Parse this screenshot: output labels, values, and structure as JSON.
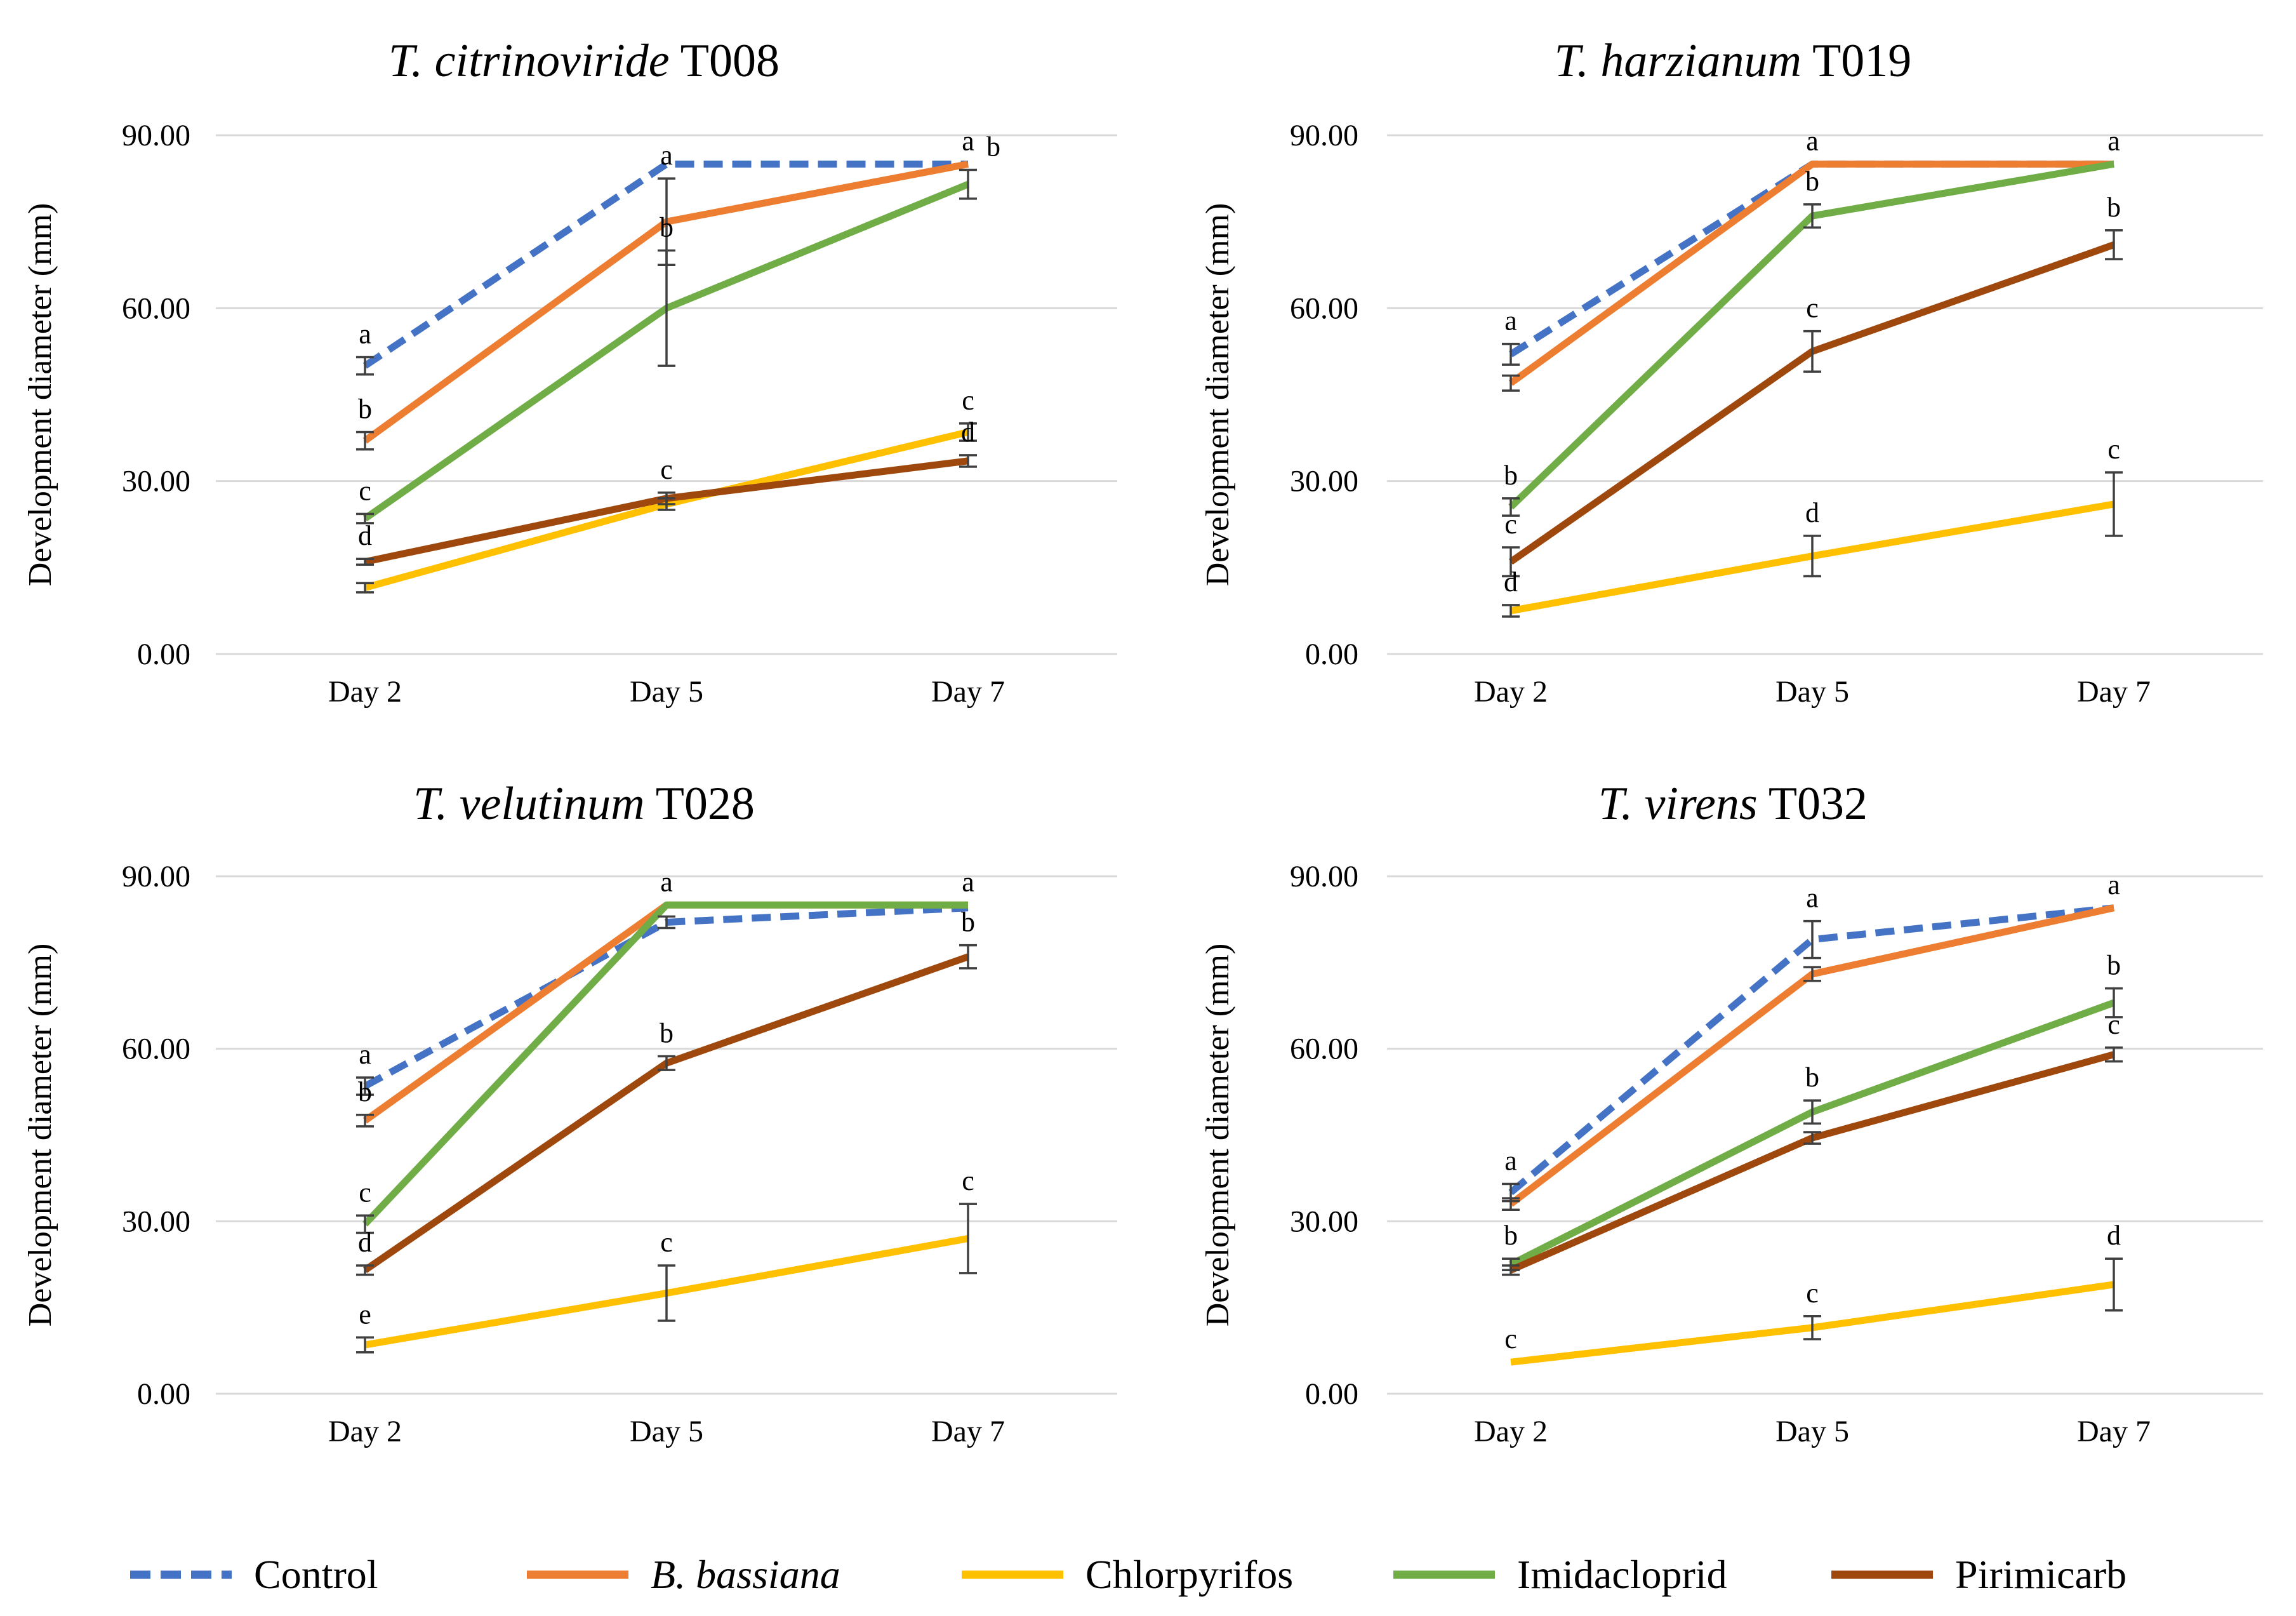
{
  "series_styles": [
    {
      "name": "Control",
      "color": "#4472C4",
      "dashed": true
    },
    {
      "name": "B. bassiana",
      "color": "#ED7D31",
      "dashed": false,
      "italic": true
    },
    {
      "name": "Chlorpyrifos",
      "color": "#FFC000",
      "dashed": false
    },
    {
      "name": "Imidacloprid",
      "color": "#70AD47",
      "dashed": false
    },
    {
      "name": "Pirimicarb",
      "color": "#9E480E",
      "dashed": false
    }
  ],
  "legend": {
    "items": [
      {
        "label": "Control"
      },
      {
        "label": "B. bassiana"
      },
      {
        "label": "Chlorpyrifos"
      },
      {
        "label": "Imidacloprid"
      },
      {
        "label": "Pirimicarb"
      }
    ]
  },
  "chart_data": [
    {
      "type": "line",
      "title_species": "T. citrinoviride",
      "title_strain": "T008",
      "categories": [
        "Day 2",
        "Day 5",
        "Day 7"
      ],
      "ylabel": "Development diameter (mm)",
      "yticks": [
        "0.00",
        "30.00",
        "60.00",
        "90.00"
      ],
      "ylim": [
        0,
        90
      ],
      "series": [
        {
          "name": "Control",
          "values": [
            50,
            85,
            85
          ],
          "errors": [
            1.5,
            0,
            0
          ],
          "letters": [
            "a",
            "",
            "a"
          ]
        },
        {
          "name": "B. bassiana",
          "values": [
            37,
            75,
            85
          ],
          "errors": [
            1.5,
            7.5,
            0
          ],
          "letters": [
            "b",
            "a",
            ""
          ]
        },
        {
          "name": "Chlorpyrifos",
          "values": [
            11.5,
            26,
            38.5
          ],
          "errors": [
            0.8,
            1,
            1.5
          ],
          "letters": [
            "",
            "",
            "c"
          ]
        },
        {
          "name": "Imidacloprid",
          "values": [
            23.5,
            60,
            81.5
          ],
          "errors": [
            0.8,
            10,
            2.5
          ],
          "letters": [
            "c",
            "b",
            "b"
          ]
        },
        {
          "name": "Pirimicarb",
          "values": [
            16,
            27,
            33.5
          ],
          "errors": [
            0.5,
            1,
            1
          ],
          "letters": [
            "d",
            "c",
            "d"
          ]
        }
      ]
    },
    {
      "type": "line",
      "title_species": "T. harzianum",
      "title_strain": "T019",
      "categories": [
        "Day 2",
        "Day 5",
        "Day 7"
      ],
      "ylabel": "Development diameter (mm)",
      "yticks": [
        "0.00",
        "30.00",
        "60.00",
        "90.00"
      ],
      "ylim": [
        0,
        90
      ],
      "series": [
        {
          "name": "Control",
          "values": [
            52,
            85,
            85
          ],
          "errors": [
            1.8,
            0,
            0
          ],
          "letters": [
            "a",
            "a",
            "a"
          ]
        },
        {
          "name": "B. bassiana",
          "values": [
            47,
            85,
            85
          ],
          "errors": [
            1.3,
            0,
            0
          ],
          "letters": [
            "",
            "",
            ""
          ]
        },
        {
          "name": "Chlorpyrifos",
          "values": [
            7.5,
            17,
            26
          ],
          "errors": [
            1,
            3.5,
            5.5
          ],
          "letters": [
            "d",
            "d",
            "c"
          ]
        },
        {
          "name": "Imidacloprid",
          "values": [
            25.5,
            76,
            85
          ],
          "errors": [
            1.5,
            2,
            0
          ],
          "letters": [
            "b",
            "b",
            ""
          ]
        },
        {
          "name": "Pirimicarb",
          "values": [
            16,
            52.5,
            71
          ],
          "errors": [
            2.5,
            3.5,
            2.5
          ],
          "letters": [
            "c",
            "c",
            "b"
          ]
        }
      ]
    },
    {
      "type": "line",
      "title_species": "T. velutinum",
      "title_strain": "T028",
      "categories": [
        "Day 2",
        "Day 5",
        "Day 7"
      ],
      "ylabel": "Development diameter (mm)",
      "yticks": [
        "0.00",
        "30.00",
        "60.00",
        "90.00"
      ],
      "ylim": [
        0,
        90
      ],
      "series": [
        {
          "name": "Control",
          "values": [
            53.5,
            82,
            84.5
          ],
          "errors": [
            1.5,
            1,
            0
          ],
          "letters": [
            "a",
            "",
            ""
          ]
        },
        {
          "name": "B. bassiana",
          "values": [
            47.5,
            85,
            85
          ],
          "errors": [
            1,
            0,
            0
          ],
          "letters": [
            "b",
            "a",
            "a"
          ]
        },
        {
          "name": "Chlorpyrifos",
          "values": [
            8.5,
            17.5,
            27
          ],
          "errors": [
            1.3,
            4.8,
            6
          ],
          "letters": [
            "e",
            "c",
            "c"
          ]
        },
        {
          "name": "Imidacloprid",
          "values": [
            29.5,
            85,
            85
          ],
          "errors": [
            1.5,
            0,
            0
          ],
          "letters": [
            "c",
            "",
            ""
          ]
        },
        {
          "name": "Pirimicarb",
          "values": [
            21.5,
            57.5,
            76
          ],
          "errors": [
            0.8,
            1.2,
            2
          ],
          "letters": [
            "d",
            "b",
            "b"
          ]
        }
      ]
    },
    {
      "type": "line",
      "title_species": "T. virens",
      "title_strain": "T032",
      "categories": [
        "Day 2",
        "Day 5",
        "Day 7"
      ],
      "ylabel": "Development diameter (mm)",
      "yticks": [
        "0.00",
        "30.00",
        "60.00",
        "90.00"
      ],
      "ylim": [
        0,
        90
      ],
      "series": [
        {
          "name": "Control",
          "values": [
            35,
            79,
            84.5
          ],
          "errors": [
            1.5,
            3.2,
            0
          ],
          "letters": [
            "a",
            "a",
            ""
          ]
        },
        {
          "name": "B. bassiana",
          "values": [
            33,
            73,
            84.5
          ],
          "errors": [
            1,
            1.2,
            0
          ],
          "letters": [
            "",
            "",
            "a"
          ]
        },
        {
          "name": "Chlorpyrifos",
          "values": [
            5.5,
            11.5,
            19
          ],
          "errors": [
            0,
            2,
            4.5
          ],
          "letters": [
            "c",
            "c",
            "d"
          ]
        },
        {
          "name": "Imidacloprid",
          "values": [
            22.5,
            49,
            68
          ],
          "errors": [
            1,
            2,
            2.5
          ],
          "letters": [
            "b",
            "b",
            "b"
          ]
        },
        {
          "name": "Pirimicarb",
          "values": [
            21.5,
            44.5,
            59
          ],
          "errors": [
            0.8,
            1,
            1.2
          ],
          "letters": [
            "",
            "",
            "c"
          ]
        }
      ]
    }
  ]
}
